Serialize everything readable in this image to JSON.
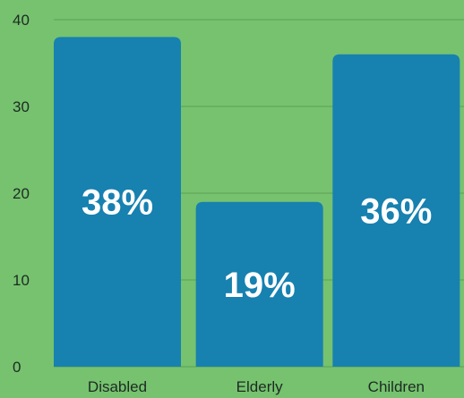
{
  "chart_data": {
    "type": "bar",
    "categories": [
      "Disabled",
      "Elderly",
      "Children"
    ],
    "values": [
      38,
      19,
      36
    ],
    "data_labels": [
      "38%",
      "19%",
      "36%"
    ],
    "ylim": [
      0,
      40
    ],
    "yticks": [
      "0",
      "10",
      "20",
      "30",
      "40"
    ],
    "grid": true,
    "title": "",
    "xlabel": "",
    "ylabel": ""
  },
  "colors": {
    "background": "#76c26f",
    "bar": "#1781b0",
    "grid": "#5ba255",
    "text": "#1d2b22",
    "data_label": "#ffffff"
  }
}
